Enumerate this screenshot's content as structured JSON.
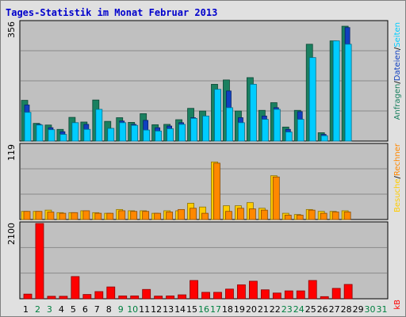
{
  "chart_data": {
    "type": "bar",
    "title": "Tages-Statistik im Monat Februar 2013",
    "categories": [
      "1",
      "2",
      "3",
      "4",
      "5",
      "6",
      "7",
      "8",
      "9",
      "10",
      "11",
      "12",
      "13",
      "14",
      "15",
      "16",
      "17",
      "18",
      "19",
      "20",
      "21",
      "22",
      "23",
      "24",
      "25",
      "26",
      "27",
      "28",
      "29",
      "30",
      "31"
    ],
    "weekend_categories": [
      "2",
      "3",
      "9",
      "10",
      "16",
      "17",
      "23",
      "24",
      "30",
      "31"
    ],
    "colors": {
      "title": "#0000cc",
      "weekday": "#000000",
      "weekend": "#008040",
      "hits": "#1a8060",
      "files": "#1040c0",
      "pages": "#00ccff",
      "visits": "#ffcc00",
      "sites": "#ff8800",
      "kbytes": "#ff0000",
      "plot_bg": "#c0c0c0"
    },
    "panels": [
      {
        "id": "top",
        "max_label": "356",
        "ymax": 356,
        "series": [
          {
            "name": "Anfragen",
            "values": [
              122,
              53,
              48,
              35,
              71,
              57,
              123,
              59,
              70,
              56,
              82,
              49,
              50,
              64,
              98,
              90,
              170,
              183,
              90,
              190,
              92,
              115,
              42,
              92,
              290,
              25,
              300,
              344,
              0,
              0,
              0
            ]
          },
          {
            "name": "Dateien",
            "values": [
              108,
              50,
              40,
              28,
              55,
              50,
              80,
              38,
              60,
              50,
              62,
              40,
              45,
              55,
              70,
              75,
              150,
              150,
              70,
              170,
              75,
              100,
              35,
              88,
              220,
              20,
              290,
              340,
              0,
              0,
              0
            ]
          },
          {
            "name": "Seiten",
            "values": [
              86,
              48,
              34,
              20,
              55,
              35,
              95,
              38,
              55,
              47,
              33,
              30,
              37,
              50,
              68,
              75,
              155,
              100,
              55,
              170,
              65,
              95,
              27,
              65,
              250,
              16,
              300,
              290,
              0,
              0,
              0
            ]
          }
        ]
      },
      {
        "id": "middle",
        "max_label": "119",
        "ymax": 119,
        "series": [
          {
            "name": "Besuche",
            "values": [
              13,
              13,
              15,
              11,
              11,
              14,
              11,
              10,
              16,
              14,
              14,
              10,
              14,
              14,
              26,
              20,
              92,
              22,
              22,
              27,
              18,
              70,
              10,
              8,
              16,
              13,
              13,
              14,
              0,
              0,
              0
            ]
          },
          {
            "name": "Rechner",
            "values": [
              13,
              13,
              12,
              10,
              11,
              14,
              10,
              10,
              14,
              13,
              13,
              10,
              12,
              16,
              18,
              10,
              90,
              13,
              18,
              17,
              15,
              68,
              7,
              7,
              15,
              10,
              12,
              12,
              0,
              0,
              0
            ]
          }
        ]
      },
      {
        "id": "bottom",
        "max_label": "2100",
        "ymax": 2100,
        "series": [
          {
            "name": "kB",
            "values": [
              130,
              2100,
              70,
              70,
              620,
              120,
              200,
              330,
              80,
              80,
              260,
              75,
              80,
              110,
              510,
              180,
              180,
              270,
              390,
              490,
              250,
              160,
              220,
              220,
              510,
              60,
              290,
              400,
              0,
              0,
              0
            ]
          }
        ]
      }
    ],
    "right_labels": {
      "top": [
        "Anfragen",
        "/",
        "Dateien",
        "/",
        "Seiten"
      ],
      "middle": [
        "Besuche",
        "/",
        "Rechner"
      ],
      "bottom": [
        "kB"
      ]
    }
  }
}
